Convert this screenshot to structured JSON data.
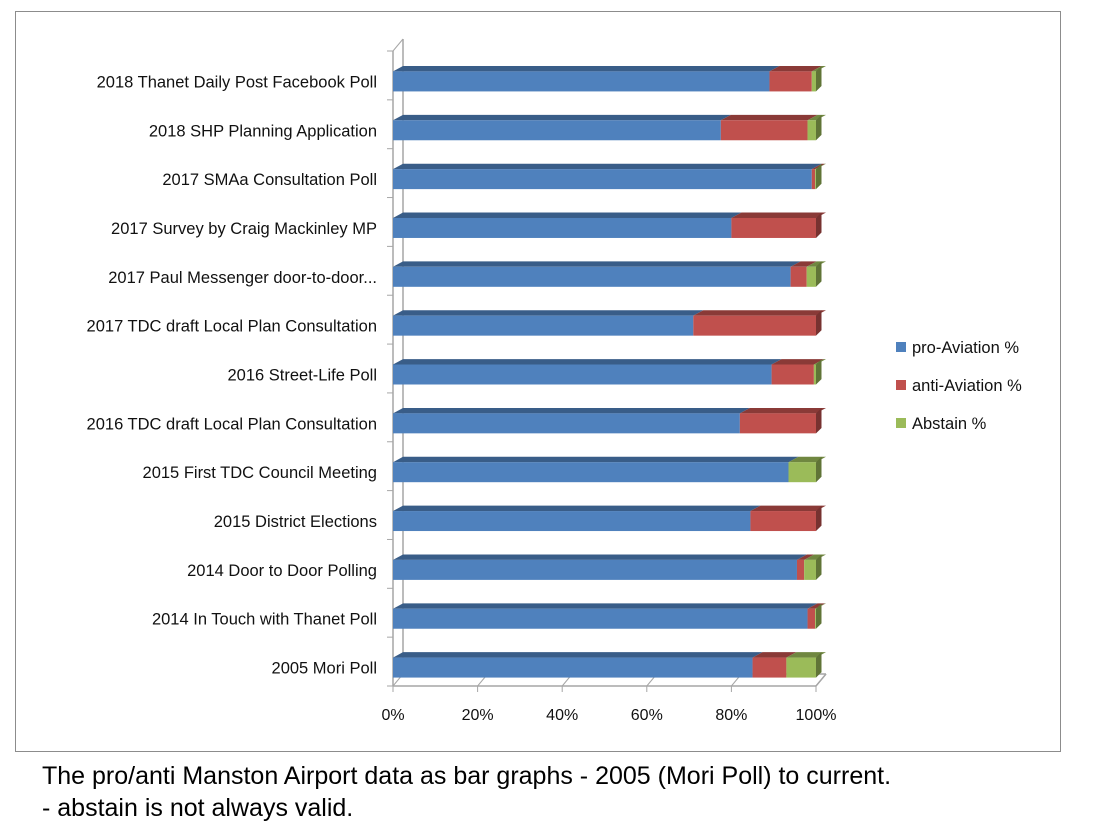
{
  "chart_data": {
    "type": "bar",
    "orientation": "horizontal",
    "stacked": "percent",
    "categories": [
      "2018 Thanet Daily Post Facebook Poll",
      "2018 SHP Planning Application",
      "2017 SMAa Consultation Poll",
      "2017 Survey by Craig Mackinley MP",
      "2017 Paul Messenger door-to-door...",
      "2017 TDC draft Local Plan Consultation",
      "2016 Street-Life Poll",
      "2016 TDC draft Local Plan Consultation",
      "2015 First TDC Council Meeting",
      "2015 District Elections",
      "2014 Door to Door Polling",
      "2014 In Touch with Thanet Poll",
      "2005 Mori Poll"
    ],
    "series": [
      {
        "name": "pro-Aviation %",
        "color": "#4f81bd",
        "values": [
          89,
          77.5,
          99,
          80,
          94,
          71,
          89.5,
          82,
          93.5,
          84.5,
          95.5,
          98,
          85
        ]
      },
      {
        "name": "anti-Aviation %",
        "color": "#c0504d",
        "values": [
          10,
          20.5,
          0.8,
          20,
          3.8,
          29,
          10,
          18,
          0,
          15.5,
          1.7,
          1.8,
          8
        ]
      },
      {
        "name": "Abstain %",
        "color": "#9bbb59",
        "values": [
          1,
          2,
          0.2,
          0,
          2.2,
          0,
          0.5,
          0,
          6.5,
          0,
          2.8,
          0.2,
          7
        ]
      }
    ],
    "x_ticks": [
      "0%",
      "20%",
      "40%",
      "60%",
      "80%",
      "100%"
    ],
    "xlim": [
      0,
      100
    ],
    "legend_position": "right",
    "grid": false,
    "style": "3d"
  },
  "caption": {
    "line1": "The pro/anti Manston Airport data as bar graphs - 2005 (Mori Poll) to current.",
    "line2": "- abstain is not always valid."
  }
}
